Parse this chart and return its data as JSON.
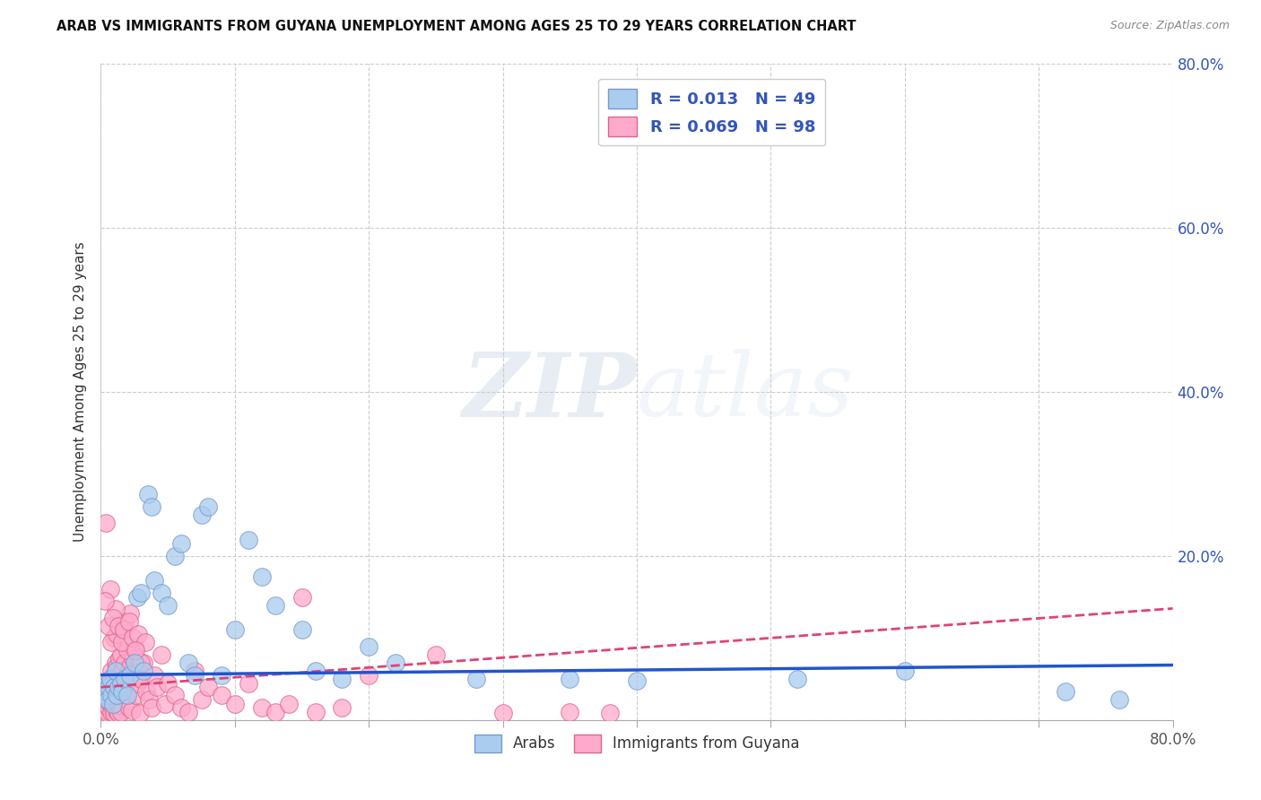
{
  "title": "ARAB VS IMMIGRANTS FROM GUYANA UNEMPLOYMENT AMONG AGES 25 TO 29 YEARS CORRELATION CHART",
  "source": "Source: ZipAtlas.com",
  "ylabel": "Unemployment Among Ages 25 to 29 years",
  "xlim": [
    0,
    0.8
  ],
  "ylim": [
    0,
    0.8
  ],
  "xtick_positions": [
    0.0,
    0.1,
    0.2,
    0.3,
    0.4,
    0.5,
    0.6,
    0.7,
    0.8
  ],
  "xticklabels": [
    "0.0%",
    "",
    "",
    "",
    "",
    "",
    "",
    "",
    "80.0%"
  ],
  "ytick_positions": [
    0.0,
    0.2,
    0.4,
    0.6,
    0.8
  ],
  "yticklabels_right": [
    "",
    "20.0%",
    "40.0%",
    "60.0%",
    "80.0%"
  ],
  "grid_color": "#cccccc",
  "arab_color": "#aaccee",
  "arab_edge_color": "#7799cc",
  "guyana_color": "#ffaacc",
  "guyana_edge_color": "#dd6688",
  "arab_R": 0.013,
  "arab_N": 49,
  "guyana_R": 0.069,
  "guyana_N": 98,
  "arab_line_color": "#2255cc",
  "guyana_line_color": "#dd4477",
  "watermark_zip": "ZIP",
  "watermark_atlas": "atlas",
  "legend_color": "#3355bb",
  "arab_line_intercept": 0.055,
  "arab_line_slope": 0.015,
  "guyana_line_intercept": 0.04,
  "guyana_line_slope": 0.12,
  "arab_scatter_x": [
    0.002,
    0.003,
    0.004,
    0.005,
    0.006,
    0.007,
    0.008,
    0.009,
    0.01,
    0.011,
    0.012,
    0.013,
    0.015,
    0.016,
    0.018,
    0.02,
    0.022,
    0.025,
    0.027,
    0.03,
    0.032,
    0.035,
    0.038,
    0.04,
    0.045,
    0.05,
    0.055,
    0.06,
    0.065,
    0.07,
    0.075,
    0.08,
    0.09,
    0.1,
    0.11,
    0.12,
    0.13,
    0.15,
    0.16,
    0.18,
    0.2,
    0.22,
    0.28,
    0.35,
    0.4,
    0.52,
    0.6,
    0.72,
    0.76
  ],
  "arab_scatter_y": [
    0.04,
    0.03,
    0.035,
    0.025,
    0.04,
    0.05,
    0.03,
    0.02,
    0.04,
    0.06,
    0.03,
    0.04,
    0.045,
    0.035,
    0.05,
    0.03,
    0.055,
    0.07,
    0.15,
    0.155,
    0.06,
    0.275,
    0.26,
    0.17,
    0.155,
    0.14,
    0.2,
    0.215,
    0.07,
    0.055,
    0.25,
    0.26,
    0.055,
    0.11,
    0.22,
    0.175,
    0.14,
    0.11,
    0.06,
    0.05,
    0.09,
    0.07,
    0.05,
    0.05,
    0.048,
    0.05,
    0.06,
    0.035,
    0.025
  ],
  "guyana_scatter_x": [
    0.001,
    0.002,
    0.002,
    0.003,
    0.003,
    0.004,
    0.004,
    0.005,
    0.005,
    0.006,
    0.006,
    0.007,
    0.007,
    0.008,
    0.008,
    0.009,
    0.009,
    0.01,
    0.01,
    0.011,
    0.011,
    0.012,
    0.012,
    0.013,
    0.013,
    0.014,
    0.014,
    0.015,
    0.015,
    0.016,
    0.017,
    0.018,
    0.019,
    0.02,
    0.021,
    0.022,
    0.023,
    0.024,
    0.025,
    0.026,
    0.027,
    0.028,
    0.029,
    0.03,
    0.032,
    0.034,
    0.036,
    0.038,
    0.04,
    0.042,
    0.045,
    0.048,
    0.05,
    0.055,
    0.06,
    0.065,
    0.07,
    0.075,
    0.08,
    0.09,
    0.1,
    0.11,
    0.12,
    0.13,
    0.14,
    0.15,
    0.16,
    0.18,
    0.2,
    0.25,
    0.3,
    0.35,
    0.38,
    0.02,
    0.025,
    0.03,
    0.01,
    0.015,
    0.008,
    0.012,
    0.006,
    0.018,
    0.022,
    0.016,
    0.004,
    0.007,
    0.011,
    0.003,
    0.009,
    0.013,
    0.017,
    0.021,
    0.024,
    0.028,
    0.033,
    0.026
  ],
  "guyana_scatter_y": [
    0.01,
    0.015,
    0.005,
    0.02,
    0.008,
    0.012,
    0.025,
    0.03,
    0.008,
    0.04,
    0.015,
    0.05,
    0.02,
    0.06,
    0.01,
    0.045,
    0.015,
    0.055,
    0.008,
    0.07,
    0.025,
    0.065,
    0.012,
    0.03,
    0.008,
    0.075,
    0.018,
    0.08,
    0.01,
    0.06,
    0.04,
    0.07,
    0.025,
    0.055,
    0.015,
    0.065,
    0.012,
    0.075,
    0.085,
    0.03,
    0.045,
    0.065,
    0.008,
    0.05,
    0.07,
    0.035,
    0.025,
    0.015,
    0.055,
    0.04,
    0.08,
    0.02,
    0.045,
    0.03,
    0.015,
    0.01,
    0.06,
    0.025,
    0.04,
    0.03,
    0.02,
    0.045,
    0.015,
    0.01,
    0.02,
    0.15,
    0.01,
    0.015,
    0.055,
    0.08,
    0.008,
    0.01,
    0.008,
    0.085,
    0.09,
    0.07,
    0.1,
    0.11,
    0.095,
    0.105,
    0.115,
    0.12,
    0.13,
    0.095,
    0.24,
    0.16,
    0.135,
    0.145,
    0.125,
    0.115,
    0.11,
    0.12,
    0.1,
    0.105,
    0.095,
    0.085
  ]
}
